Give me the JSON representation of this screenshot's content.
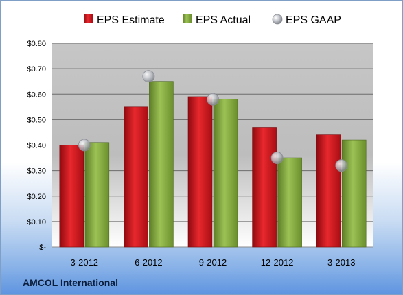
{
  "company": "AMCOL International",
  "chart_data": {
    "type": "bar",
    "categories": [
      "3-2012",
      "6-2012",
      "9-2012",
      "12-2012",
      "3-2013"
    ],
    "series": [
      {
        "name": "EPS Estimate",
        "kind": "bar",
        "color": "#c0141a",
        "values": [
          0.4,
          0.55,
          0.59,
          0.47,
          0.44
        ]
      },
      {
        "name": "EPS Actual",
        "kind": "bar",
        "color": "#7da03b",
        "values": [
          0.41,
          0.65,
          0.58,
          0.35,
          0.42
        ]
      },
      {
        "name": "EPS GAAP",
        "kind": "marker",
        "color": "#a9acb3",
        "values": [
          0.4,
          0.67,
          0.58,
          0.35,
          0.32
        ]
      }
    ],
    "ylim": [
      0,
      0.8
    ],
    "yticks": [
      0,
      0.1,
      0.2,
      0.3,
      0.4,
      0.5,
      0.6,
      0.7,
      0.8
    ],
    "ytick_labels": [
      "$-",
      "$0.10",
      "$0.20",
      "$0.30",
      "$0.40",
      "$0.50",
      "$0.60",
      "$0.70",
      "$0.80"
    ],
    "grid": true,
    "legend_position": "top"
  }
}
